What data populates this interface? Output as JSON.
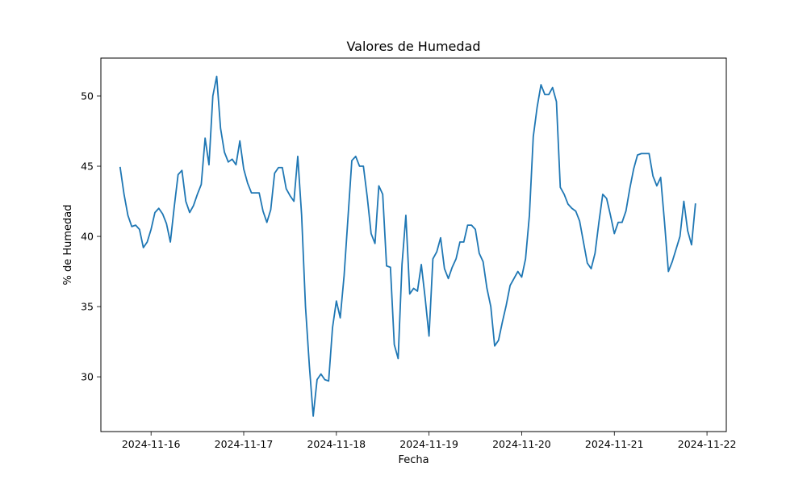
{
  "chart_data": {
    "type": "line",
    "title": "Valores de Humedad",
    "xlabel": "Fecha",
    "ylabel": "% de Humedad",
    "x_ticks": [
      "2024-11-16",
      "2024-11-17",
      "2024-11-18",
      "2024-11-19",
      "2024-11-20",
      "2024-11-21",
      "2024-11-22"
    ],
    "y_ticks": [
      30,
      35,
      40,
      45,
      50
    ],
    "xlim": [
      "2024-11-15T11:00",
      "2024-11-22T05:00"
    ],
    "ylim": [
      26.1,
      52.7
    ],
    "grid": false,
    "line_color": "#1f77b4",
    "series": [
      {
        "x": [
          "2024-11-15T16:00",
          "2024-11-15T17:00",
          "2024-11-15T18:00",
          "2024-11-15T19:00",
          "2024-11-15T20:00",
          "2024-11-15T21:00",
          "2024-11-15T22:00",
          "2024-11-15T23:00",
          "2024-11-16T00:00",
          "2024-11-16T01:00",
          "2024-11-16T02:00",
          "2024-11-16T03:00",
          "2024-11-16T04:00",
          "2024-11-16T05:00",
          "2024-11-16T06:00",
          "2024-11-16T07:00",
          "2024-11-16T08:00",
          "2024-11-16T09:00",
          "2024-11-16T10:00",
          "2024-11-16T11:00",
          "2024-11-16T12:00",
          "2024-11-16T13:00",
          "2024-11-16T14:00",
          "2024-11-16T15:00",
          "2024-11-16T16:00",
          "2024-11-16T17:00",
          "2024-11-16T18:00",
          "2024-11-16T19:00",
          "2024-11-16T20:00",
          "2024-11-16T21:00",
          "2024-11-16T22:00",
          "2024-11-16T23:00",
          "2024-11-17T00:00",
          "2024-11-17T01:00",
          "2024-11-17T02:00",
          "2024-11-17T03:00",
          "2024-11-17T04:00",
          "2024-11-17T05:00",
          "2024-11-17T06:00",
          "2024-11-17T07:00",
          "2024-11-17T08:00",
          "2024-11-17T09:00",
          "2024-11-17T10:00",
          "2024-11-17T11:00",
          "2024-11-17T12:00",
          "2024-11-17T13:00",
          "2024-11-17T14:00",
          "2024-11-17T15:00",
          "2024-11-17T16:00",
          "2024-11-17T17:00",
          "2024-11-17T18:00",
          "2024-11-17T19:00",
          "2024-11-17T20:00",
          "2024-11-17T21:00",
          "2024-11-17T22:00",
          "2024-11-17T23:00",
          "2024-11-18T00:00",
          "2024-11-18T01:00",
          "2024-11-18T02:00",
          "2024-11-18T03:00",
          "2024-11-18T04:00",
          "2024-11-18T05:00",
          "2024-11-18T06:00",
          "2024-11-18T07:00",
          "2024-11-18T08:00",
          "2024-11-18T09:00",
          "2024-11-18T10:00",
          "2024-11-18T11:00",
          "2024-11-18T12:00",
          "2024-11-18T13:00",
          "2024-11-18T14:00",
          "2024-11-18T15:00",
          "2024-11-18T16:00",
          "2024-11-18T17:00",
          "2024-11-18T18:00",
          "2024-11-18T19:00",
          "2024-11-18T20:00",
          "2024-11-18T21:00",
          "2024-11-18T22:00",
          "2024-11-18T23:00",
          "2024-11-19T00:00",
          "2024-11-19T01:00",
          "2024-11-19T02:00",
          "2024-11-19T03:00",
          "2024-11-19T04:00",
          "2024-11-19T05:00",
          "2024-11-19T06:00",
          "2024-11-19T07:00",
          "2024-11-19T08:00",
          "2024-11-19T09:00",
          "2024-11-19T10:00",
          "2024-11-19T11:00",
          "2024-11-19T12:00",
          "2024-11-19T13:00",
          "2024-11-19T14:00",
          "2024-11-19T15:00",
          "2024-11-19T16:00",
          "2024-11-19T17:00",
          "2024-11-19T18:00",
          "2024-11-19T19:00",
          "2024-11-19T20:00",
          "2024-11-19T21:00",
          "2024-11-19T22:00",
          "2024-11-19T23:00",
          "2024-11-20T00:00",
          "2024-11-20T01:00",
          "2024-11-20T02:00",
          "2024-11-20T03:00",
          "2024-11-20T04:00",
          "2024-11-20T05:00",
          "2024-11-20T06:00",
          "2024-11-20T07:00",
          "2024-11-20T08:00",
          "2024-11-20T09:00",
          "2024-11-20T10:00",
          "2024-11-20T11:00",
          "2024-11-20T12:00",
          "2024-11-20T13:00",
          "2024-11-20T14:00",
          "2024-11-20T15:00",
          "2024-11-20T16:00",
          "2024-11-20T17:00",
          "2024-11-20T18:00",
          "2024-11-20T19:00",
          "2024-11-20T20:00",
          "2024-11-20T21:00",
          "2024-11-20T22:00",
          "2024-11-20T23:00",
          "2024-11-21T00:00",
          "2024-11-21T01:00",
          "2024-11-21T02:00",
          "2024-11-21T03:00",
          "2024-11-21T04:00",
          "2024-11-21T05:00",
          "2024-11-21T06:00",
          "2024-11-21T07:00",
          "2024-11-21T08:00",
          "2024-11-21T09:00",
          "2024-11-21T10:00",
          "2024-11-21T11:00",
          "2024-11-21T12:00",
          "2024-11-21T13:00",
          "2024-11-21T14:00",
          "2024-11-21T15:00",
          "2024-11-21T16:00",
          "2024-11-21T17:00",
          "2024-11-21T18:00",
          "2024-11-21T19:00",
          "2024-11-21T20:00",
          "2024-11-21T21:00"
        ],
        "values": [
          44.9,
          43.0,
          41.5,
          40.7,
          40.8,
          40.5,
          39.2,
          39.6,
          40.5,
          41.7,
          42.0,
          41.6,
          40.9,
          39.6,
          42.1,
          44.4,
          44.7,
          42.5,
          41.7,
          42.2,
          43.0,
          43.7,
          47.0,
          45.1,
          50.0,
          51.4,
          47.7,
          46.0,
          45.3,
          45.5,
          45.1,
          46.8,
          44.8,
          43.8,
          43.1,
          43.1,
          43.1,
          41.8,
          41.0,
          41.9,
          44.5,
          44.9,
          44.9,
          43.4,
          42.9,
          42.5,
          45.7,
          41.5,
          35.0,
          30.8,
          27.2,
          29.8,
          30.2,
          29.8,
          29.7,
          33.5,
          35.4,
          34.2,
          37.2,
          41.3,
          45.4,
          45.7,
          45.0,
          45.0,
          42.8,
          40.2,
          39.5,
          43.6,
          43.0,
          37.9,
          37.8,
          32.3,
          31.3,
          38.0,
          41.5,
          35.9,
          36.3,
          36.1,
          38.0,
          35.6,
          32.9,
          38.4,
          38.9,
          39.9,
          37.7,
          37.0,
          37.8,
          38.4,
          39.6,
          39.6,
          40.8,
          40.8,
          40.5,
          38.8,
          38.2,
          36.3,
          35.0,
          32.2,
          32.6,
          33.9,
          35.1,
          36.5,
          37.0,
          37.5,
          37.1,
          38.4,
          41.5,
          47.1,
          49.2,
          50.8,
          50.1,
          50.1,
          50.6,
          49.6,
          43.5,
          43.0,
          42.3,
          42.0,
          41.8,
          41.1,
          39.6,
          38.1,
          37.7,
          38.8,
          41.0,
          43.0,
          42.7,
          41.5,
          40.2,
          41.0,
          41.0,
          41.8,
          43.4,
          44.8,
          45.8,
          45.9,
          45.9,
          45.9,
          44.3,
          43.6,
          44.2,
          41.0,
          37.5,
          38.2,
          39.1,
          40.0,
          42.5,
          40.4,
          39.4,
          42.3
        ]
      }
    ]
  }
}
